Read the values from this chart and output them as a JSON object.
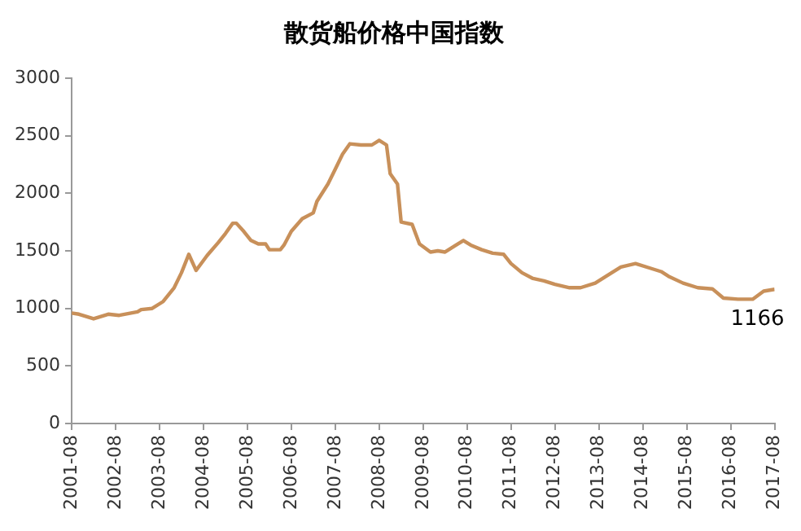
{
  "chart_data": {
    "type": "line",
    "title": "散货船价格中国指数",
    "x": [
      "2001-08",
      "2001-10",
      "2002-02",
      "2002-06",
      "2002-09",
      "2003-02",
      "2003-03",
      "2003-06",
      "2003-09",
      "2003-12",
      "2004-02",
      "2004-04",
      "2004-06",
      "2004-09",
      "2004-12",
      "2005-02",
      "2005-04",
      "2005-05",
      "2005-07",
      "2005-09",
      "2005-11",
      "2006-01",
      "2006-02",
      "2006-05",
      "2006-06",
      "2006-08",
      "2006-11",
      "2007-02",
      "2007-03",
      "2007-06",
      "2007-08",
      "2007-10",
      "2007-12",
      "2008-03",
      "2008-06",
      "2008-08",
      "2008-10",
      "2008-11",
      "2009-01",
      "2009-02",
      "2009-05",
      "2009-07",
      "2009-10",
      "2009-12",
      "2010-02",
      "2010-05",
      "2010-07",
      "2010-09",
      "2010-12",
      "2011-03",
      "2011-06",
      "2011-08",
      "2011-11",
      "2012-02",
      "2012-05",
      "2012-08",
      "2012-12",
      "2013-03",
      "2013-07",
      "2013-10",
      "2014-02",
      "2014-06",
      "2014-10",
      "2015-01",
      "2015-03",
      "2015-07",
      "2015-11",
      "2016-03",
      "2016-06",
      "2016-10",
      "2017-02",
      "2017-05",
      "2017-08"
    ],
    "series": [
      {
        "color": "#c8905a",
        "values": [
          960,
          950,
          910,
          950,
          940,
          970,
          990,
          1000,
          1060,
          1180,
          1310,
          1470,
          1330,
          1460,
          1570,
          1650,
          1740,
          1740,
          1670,
          1590,
          1560,
          1560,
          1510,
          1510,
          1550,
          1670,
          1780,
          1830,
          1930,
          2080,
          2210,
          2340,
          2430,
          2420,
          2420,
          2460,
          2420,
          2170,
          2080,
          1750,
          1730,
          1560,
          1490,
          1500,
          1490,
          1550,
          1590,
          1550,
          1510,
          1480,
          1470,
          1390,
          1310,
          1260,
          1240,
          1210,
          1180,
          1180,
          1220,
          1280,
          1360,
          1390,
          1350,
          1320,
          1280,
          1220,
          1180,
          1170,
          1090,
          1080,
          1080,
          1150,
          1166
        ]
      }
    ],
    "xlim": [
      "2001-08",
      "2017-08"
    ],
    "xticks": [
      "2001-08",
      "2002-08",
      "2003-08",
      "2004-08",
      "2005-08",
      "2006-08",
      "2007-08",
      "2008-08",
      "2009-08",
      "2010-08",
      "2011-08",
      "2012-08",
      "2013-08",
      "2014-08",
      "2015-08",
      "2016-08",
      "2017-08"
    ],
    "ylim": [
      0,
      3000
    ],
    "yticks": [
      0,
      500,
      1000,
      1500,
      2000,
      2500,
      3000
    ],
    "grid": false,
    "marker": "none",
    "annotations": [
      {
        "text": "1166",
        "x": "2017-08",
        "y": 1166
      }
    ]
  }
}
